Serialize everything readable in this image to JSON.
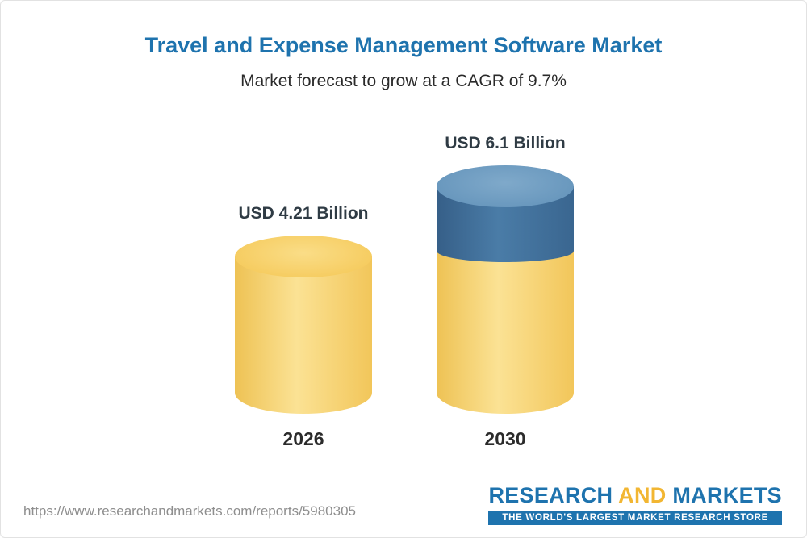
{
  "page": {
    "title": "Travel and Expense Management Software Market",
    "subtitle": "Market forecast to grow at a CAGR of 9.7%"
  },
  "chart_data": {
    "type": "bar",
    "title": "Travel and Expense Management Software Market",
    "subtitle": "Market forecast to grow at a CAGR of 9.7%",
    "cagr_percent": 9.7,
    "unit": "USD Billion",
    "categories": [
      "2026",
      "2030"
    ],
    "values": [
      4.21,
      6.1
    ],
    "value_labels": [
      "USD 4.21 Billion",
      "USD 6.1 Billion"
    ],
    "growth_segment": {
      "category": "2030",
      "from": 4.21,
      "to": 6.1,
      "color": "#4a7ca7"
    },
    "bar_base_color": "#f6cc60",
    "bar_growth_color": "#4a7ca7",
    "ylim": [
      0,
      6.5
    ],
    "grid": false,
    "legend": false
  },
  "footer": {
    "url": "https://www.researchandmarkets.com/reports/5980305",
    "logo": {
      "part1": "RESEARCH",
      "part2": "AND",
      "part3": "MARKETS",
      "tagline": "THE WORLD'S LARGEST MARKET RESEARCH STORE"
    }
  }
}
